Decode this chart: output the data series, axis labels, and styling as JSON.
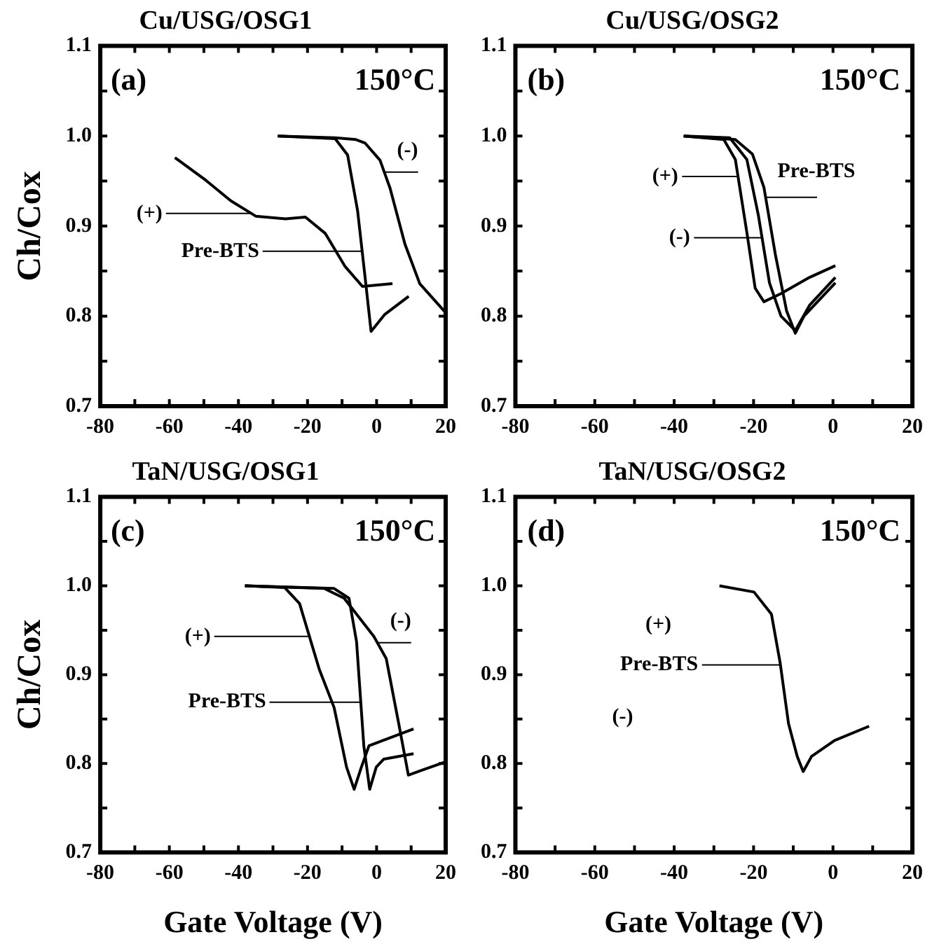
{
  "chart_data": [
    {
      "type": "line",
      "title": "Cu/USG/OSG1",
      "ylabel": "Ch/Cox",
      "marker": "none",
      "xlim": [
        -80,
        20
      ],
      "ylim": [
        0.7,
        1.1
      ],
      "xticks": [
        -80,
        {
          "value": -70,
          "label": null
        },
        -60,
        {
          "value": -50,
          "label": null
        },
        -40,
        {
          "value": -30,
          "label": null
        },
        -20,
        {
          "value": -10,
          "label": null
        },
        0,
        {
          "value": 10,
          "label": null
        },
        20
      ],
      "yticks": [
        0.7,
        {
          "value": 0.75,
          "label": null
        },
        0.8,
        {
          "value": 0.85,
          "label": null
        },
        0.9,
        {
          "value": 0.95,
          "label": null
        },
        {
          "value": 1,
          "label": "1.0"
        },
        {
          "value": 1.05,
          "label": null
        },
        1.1
      ],
      "annotations": [
        "(a)",
        "150°C",
        "(+)",
        "Pre-BTS",
        "(-)"
      ],
      "series": [
        {
          "color": "#000000",
          "x": [
            -58.4,
            -49.5,
            -42.2,
            -35,
            -26.4,
            -20.6,
            -14.9,
            -9.1,
            -4.1,
            4.6
          ],
          "values": [
            0.976,
            0.951,
            0.928,
            0.911,
            0.908,
            0.91,
            0.892,
            0.855,
            0.833,
            0.836
          ]
        },
        {
          "color": "#000000",
          "x": [
            -28.6,
            -12,
            -8.4,
            -5.5,
            -3.3,
            -1.6,
            2.4,
            9.3
          ],
          "values": [
            1.0,
            0.997,
            0.979,
            0.917,
            0.842,
            0.783,
            0.802,
            0.822
          ]
        },
        {
          "color": "#000000",
          "x": [
            -28.6,
            -12,
            -6,
            -3.3,
            1.0,
            3.9,
            8.2,
            12.5,
            19.7
          ],
          "values": [
            1.0,
            0.998,
            0.996,
            0.992,
            0.973,
            0.942,
            0.88,
            0.836,
            0.805
          ]
        }
      ]
    },
    {
      "type": "line",
      "title": "Cu/USG/OSG2",
      "marker": "none",
      "xlim": [
        -80,
        20
      ],
      "ylim": [
        0.7,
        1.1
      ],
      "xticks": [
        -80,
        {
          "value": -70,
          "label": null
        },
        -60,
        {
          "value": -50,
          "label": null
        },
        -40,
        {
          "value": -30,
          "label": null
        },
        -20,
        {
          "value": -10,
          "label": null
        },
        0,
        {
          "value": 10,
          "label": null
        },
        20
      ],
      "yticks": [
        0.7,
        {
          "value": 0.75,
          "label": null
        },
        0.8,
        {
          "value": 0.85,
          "label": null
        },
        0.9,
        {
          "value": 0.95,
          "label": null
        },
        {
          "value": 1,
          "label": "1.0"
        },
        {
          "value": 1.05,
          "label": null
        },
        1.1
      ],
      "annotations": [
        "(b)",
        "150°C",
        "(+)",
        "Pre-BTS",
        "(-)"
      ],
      "series": [
        {
          "color": "#000000",
          "x": [
            -37.6,
            -27.5,
            -24.6,
            -21.7,
            -19.6,
            -17.4,
            -13.1,
            -5.9,
            0.6
          ],
          "values": [
            1.0,
            0.996,
            0.974,
            0.893,
            0.831,
            0.816,
            0.825,
            0.843,
            0.856
          ]
        },
        {
          "color": "#000000",
          "x": [
            -37.6,
            -26.0,
            -21.7,
            -18.8,
            -16.0,
            -13.1,
            -9.5,
            -5.9,
            0.6
          ],
          "values": [
            1.0,
            0.998,
            0.974,
            0.912,
            0.837,
            0.8,
            0.784,
            0.812,
            0.843
          ]
        },
        {
          "color": "#000000",
          "x": [
            -37.6,
            -24.6,
            -20.3,
            -17.4,
            -14.5,
            -11.7,
            -9.5,
            -7.3,
            0.6
          ],
          "values": [
            1.0,
            0.996,
            0.98,
            0.943,
            0.868,
            0.806,
            0.781,
            0.8,
            0.837
          ]
        }
      ]
    },
    {
      "type": "line",
      "title": "TaN/USG/OSG1",
      "ylabel": "Ch/Cox",
      "xlabel": "Gate Voltage (V)",
      "marker": "none",
      "xlim": [
        -80,
        20
      ],
      "ylim": [
        0.7,
        1.1
      ],
      "xticks": [
        -80,
        {
          "value": -70,
          "label": null
        },
        -60,
        {
          "value": -50,
          "label": null
        },
        -40,
        {
          "value": -30,
          "label": null
        },
        -20,
        {
          "value": -10,
          "label": null
        },
        0,
        {
          "value": 10,
          "label": null
        },
        20
      ],
      "yticks": [
        0.7,
        {
          "value": 0.75,
          "label": null
        },
        0.8,
        {
          "value": 0.85,
          "label": null
        },
        0.9,
        {
          "value": 0.95,
          "label": null
        },
        {
          "value": 1,
          "label": "1.0"
        },
        {
          "value": 1.05,
          "label": null
        },
        1.1
      ],
      "annotations": [
        "(c)",
        "150°C",
        "(+)",
        "Pre-BTS",
        "(-)"
      ],
      "series": [
        {
          "color": "#000000",
          "x": [
            -38.1,
            -26.6,
            -22.3,
            -16.6,
            -12.3,
            -8.7,
            -6.5,
            -4.4,
            -2.2,
            10.7
          ],
          "values": [
            1.0,
            0.998,
            0.98,
            0.906,
            0.863,
            0.796,
            0.771,
            0.796,
            0.82,
            0.839
          ]
        },
        {
          "color": "#000000",
          "x": [
            -38.1,
            -12.3,
            -8.0,
            -5.8,
            -3.7,
            -2.0,
            -0.1,
            2.1,
            10.7
          ],
          "values": [
            1.0,
            0.997,
            0.986,
            0.937,
            0.82,
            0.771,
            0.796,
            0.805,
            0.811
          ]
        },
        {
          "color": "#000000",
          "x": [
            -38.1,
            -15.2,
            -9.4,
            -0.8,
            2.8,
            6.4,
            9.2,
            13.5,
            20
          ],
          "values": [
            1.0,
            0.997,
            0.986,
            0.943,
            0.918,
            0.845,
            0.787,
            0.793,
            0.802
          ]
        }
      ]
    },
    {
      "type": "line",
      "title": "TaN/USG/OSG2",
      "xlabel": "Gate Voltage (V)",
      "marker": "none",
      "xlim": [
        -80,
        20
      ],
      "ylim": [
        0.7,
        1.1
      ],
      "xticks": [
        -80,
        {
          "value": -70,
          "label": null
        },
        -60,
        {
          "value": -50,
          "label": null
        },
        -40,
        {
          "value": -30,
          "label": null
        },
        -20,
        {
          "value": -10,
          "label": null
        },
        0,
        {
          "value": 10,
          "label": null
        },
        20
      ],
      "yticks": [
        0.7,
        {
          "value": 0.75,
          "label": null
        },
        0.8,
        {
          "value": 0.85,
          "label": null
        },
        0.9,
        {
          "value": 0.95,
          "label": null
        },
        {
          "value": 1,
          "label": "1.0"
        },
        {
          "value": 1.05,
          "label": null
        },
        1.1
      ],
      "annotations": [
        "(d)",
        "150°C",
        "(+)",
        "Pre-BTS",
        "(-)"
      ],
      "series": [
        {
          "color": "#000000",
          "x": [
            -28.6,
            -19.9,
            -15.5,
            -13.3,
            -11.2,
            -9.0,
            -7.5,
            -5.4,
            0.4,
            9.1
          ],
          "values": [
            1.0,
            0.993,
            0.968,
            0.913,
            0.845,
            0.808,
            0.791,
            0.808,
            0.826,
            0.842
          ]
        }
      ]
    }
  ]
}
